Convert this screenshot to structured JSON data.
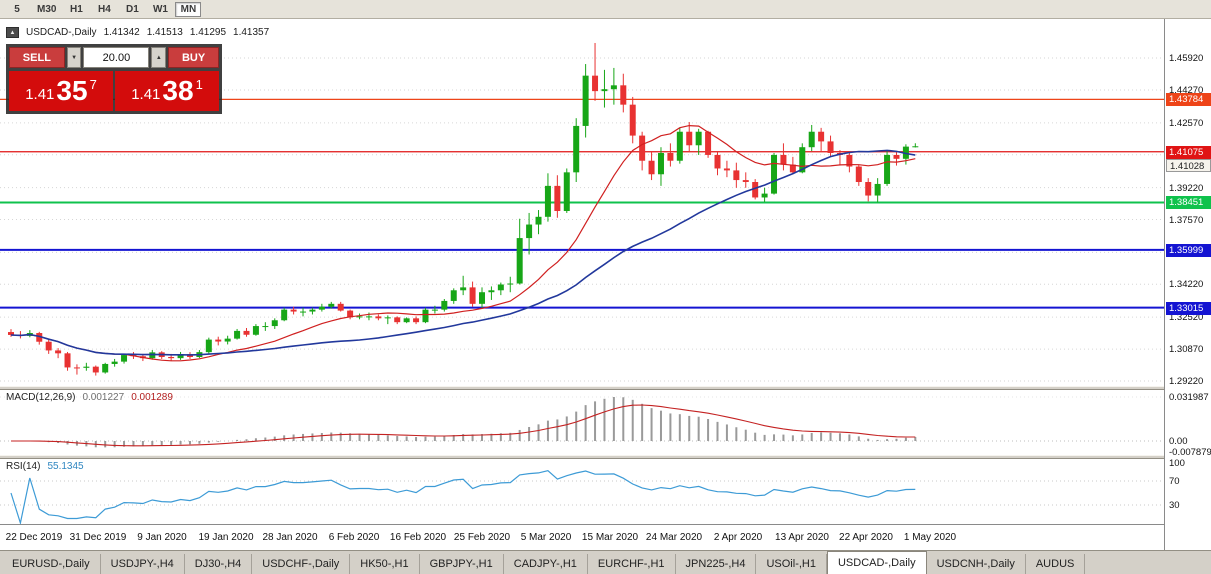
{
  "toolbar": {
    "timeframes": [
      {
        "label": "5",
        "active": false
      },
      {
        "label": "M30",
        "active": false
      },
      {
        "label": "H1",
        "active": false
      },
      {
        "label": "H4",
        "active": false
      },
      {
        "label": "D1",
        "active": false
      },
      {
        "label": "W1",
        "active": false
      },
      {
        "label": "MN",
        "active": true
      }
    ]
  },
  "header": {
    "symbol": "USDCAD-,Daily",
    "open": "1.41342",
    "high": "1.41513",
    "low": "1.41295",
    "close": "1.41357"
  },
  "icons": {
    "one_click_toggle": "▲",
    "spin_down": "▼",
    "spin_up": "▲"
  },
  "trade_panel": {
    "sell_label": "SELL",
    "buy_label": "BUY",
    "volume": "20.00",
    "sell_price": {
      "prefix": "1.41",
      "digits": "35",
      "sup": "7"
    },
    "buy_price": {
      "prefix": "1.41",
      "digits": "38",
      "sup": "1"
    }
  },
  "price_axis": {
    "ticks": [
      "1.45920",
      "1.44270",
      "1.42570",
      "1.40920",
      "1.39220",
      "1.37570",
      "1.35870",
      "1.34220",
      "1.32520",
      "1.30870",
      "1.29220"
    ],
    "tags": [
      {
        "label": "1.43784",
        "bg": "#ee4418",
        "fg": "#ffffff"
      },
      {
        "label": "1.41075",
        "bg": "#e01414",
        "fg": "#ffffff"
      },
      {
        "label": "1.41028",
        "bg": "#f6f3ec",
        "fg": "#222222"
      },
      {
        "label": "1.38451",
        "bg": "#0fc24c",
        "fg": "#ffffff"
      },
      {
        "label": "1.35999",
        "bg": "#1414d2",
        "fg": "#ffffff"
      },
      {
        "label": "1.33015",
        "bg": "#1414d2",
        "fg": "#ffffff"
      }
    ]
  },
  "hlines": [
    {
      "value": 1.43784,
      "color": "#ee4418",
      "width": 1.2
    },
    {
      "value": 1.41075,
      "color": "#e01414",
      "width": 1.2
    },
    {
      "value": 1.38451,
      "color": "#0fc24c",
      "width": 2
    },
    {
      "value": 1.35999,
      "color": "#1414d2",
      "width": 2
    },
    {
      "value": 1.33015,
      "color": "#1414d2",
      "width": 2
    }
  ],
  "macd": {
    "label": "MACD(12,26,9)",
    "value_main": "0.001227",
    "value_signal": "0.001289",
    "axis": [
      "0.031987",
      "0.00",
      "-0.007879"
    ],
    "params": {
      "fast": 12,
      "slow": 26,
      "signal": 9
    }
  },
  "rsi": {
    "label": "RSI(14)",
    "value": "55.1345",
    "axis": [
      "100",
      "70",
      "30"
    ],
    "period": 14,
    "levels": [
      70,
      30
    ]
  },
  "date_axis": [
    "22 Dec 2019",
    "31 Dec 2019",
    "9 Jan 2020",
    "19 Jan 2020",
    "28 Jan 2020",
    "6 Feb 2020",
    "16 Feb 2020",
    "25 Feb 2020",
    "5 Mar 2020",
    "15 Mar 2020",
    "24 Mar 2020",
    "2 Apr 2020",
    "13 Apr 2020",
    "22 Apr 2020",
    "1 May 2020"
  ],
  "tabbar": {
    "tabs": [
      "EURUSD-,Daily",
      "USDJPY-,H4",
      "DJ30-,H4",
      "USDCHF-,Daily",
      "HK50-,H1",
      "GBPJPY-,H1",
      "CADJPY-,H1",
      "EURCHF-,H1",
      "JPN225-,H4",
      "USOil-,H1",
      "USDCAD-,Daily",
      "USDCNH-,Daily",
      "AUDUS"
    ],
    "active": "USDCAD-,Daily"
  },
  "colors": {
    "up": "#17a617",
    "down": "#e83232",
    "ma_fast": "#d02020",
    "ma_slow": "#22389c",
    "macd_hist": "#9a9a9a",
    "macd_signal": "#c42222",
    "rsi_line": "#3d9bd6",
    "grid": "#d6d6d6"
  },
  "chart_data": {
    "type": "candlestick",
    "symbol": "USDCAD",
    "timeframe": "Daily",
    "y_range": [
      1.2896,
      1.4794
    ],
    "ohlc_current": [
      1.41342,
      1.41513,
      1.41295,
      1.41357
    ],
    "indicators": [
      "SMA fast (red)",
      "SMA slow (blue)",
      "MACD(12,26,9)",
      "RSI(14)"
    ],
    "candles": [
      [
        1.3175,
        1.319,
        1.315,
        1.316
      ],
      [
        1.316,
        1.318,
        1.3142,
        1.3155
      ],
      [
        1.3155,
        1.3185,
        1.3148,
        1.317
      ],
      [
        1.317,
        1.3176,
        1.311,
        1.3125
      ],
      [
        1.3125,
        1.3136,
        1.3062,
        1.308
      ],
      [
        1.308,
        1.3092,
        1.304,
        1.3065
      ],
      [
        1.3065,
        1.3072,
        1.2975,
        1.2992
      ],
      [
        1.2992,
        1.3008,
        1.2955,
        1.299
      ],
      [
        1.299,
        1.3016,
        1.2975,
        1.2996
      ],
      [
        1.2996,
        1.3002,
        1.295,
        1.2966
      ],
      [
        1.2966,
        1.3016,
        1.296,
        1.301
      ],
      [
        1.301,
        1.3036,
        1.2996,
        1.3022
      ],
      [
        1.3022,
        1.3062,
        1.3012,
        1.3056
      ],
      [
        1.3056,
        1.3072,
        1.3036,
        1.305
      ],
      [
        1.305,
        1.3062,
        1.3025,
        1.304
      ],
      [
        1.304,
        1.3082,
        1.3032,
        1.307
      ],
      [
        1.307,
        1.3076,
        1.3036,
        1.3046
      ],
      [
        1.3046,
        1.3062,
        1.3026,
        1.304
      ],
      [
        1.304,
        1.3072,
        1.3031,
        1.3061
      ],
      [
        1.3061,
        1.3071,
        1.3036,
        1.3046
      ],
      [
        1.3046,
        1.3082,
        1.3041,
        1.3071
      ],
      [
        1.3071,
        1.3146,
        1.3062,
        1.3136
      ],
      [
        1.3136,
        1.3151,
        1.3106,
        1.3126
      ],
      [
        1.3126,
        1.3156,
        1.3111,
        1.3141
      ],
      [
        1.3141,
        1.3191,
        1.3136,
        1.3181
      ],
      [
        1.3181,
        1.3196,
        1.3151,
        1.3161
      ],
      [
        1.3161,
        1.3216,
        1.3156,
        1.3206
      ],
      [
        1.3206,
        1.3226,
        1.3181,
        1.3206
      ],
      [
        1.3206,
        1.3246,
        1.3191,
        1.3236
      ],
      [
        1.3236,
        1.3301,
        1.3231,
        1.3291
      ],
      [
        1.3291,
        1.3306,
        1.3266,
        1.3281
      ],
      [
        1.3281,
        1.3301,
        1.3256,
        1.3281
      ],
      [
        1.3281,
        1.3301,
        1.3266,
        1.3291
      ],
      [
        1.3291,
        1.3321,
        1.3281,
        1.3306
      ],
      [
        1.3306,
        1.3331,
        1.3296,
        1.3321
      ],
      [
        1.3321,
        1.3331,
        1.3281,
        1.3286
      ],
      [
        1.3286,
        1.3291,
        1.3241,
        1.3251
      ],
      [
        1.3251,
        1.3271,
        1.3241,
        1.3256
      ],
      [
        1.3256,
        1.3276,
        1.3236,
        1.3256
      ],
      [
        1.3256,
        1.3266,
        1.3236,
        1.3246
      ],
      [
        1.3246,
        1.3261,
        1.3216,
        1.3251
      ],
      [
        1.3251,
        1.3256,
        1.3216,
        1.3226
      ],
      [
        1.3226,
        1.3251,
        1.3221,
        1.3246
      ],
      [
        1.3246,
        1.3256,
        1.3216,
        1.3226
      ],
      [
        1.3226,
        1.3301,
        1.3221,
        1.3291
      ],
      [
        1.3291,
        1.3311,
        1.3271,
        1.3291
      ],
      [
        1.3291,
        1.3346,
        1.3281,
        1.3336
      ],
      [
        1.3336,
        1.3401,
        1.3321,
        1.3391
      ],
      [
        1.3391,
        1.3466,
        1.3366,
        1.3406
      ],
      [
        1.3406,
        1.3436,
        1.3306,
        1.3321
      ],
      [
        1.3321,
        1.3406,
        1.3301,
        1.3381
      ],
      [
        1.3381,
        1.3411,
        1.3341,
        1.3391
      ],
      [
        1.3391,
        1.3431,
        1.3366,
        1.3421
      ],
      [
        1.3421,
        1.3461,
        1.3381,
        1.3426
      ],
      [
        1.3426,
        1.3761,
        1.3421,
        1.3661
      ],
      [
        1.3661,
        1.3791,
        1.3576,
        1.3731
      ],
      [
        1.3731,
        1.3806,
        1.3681,
        1.3771
      ],
      [
        1.3771,
        1.3996,
        1.3746,
        1.3931
      ],
      [
        1.3931,
        1.3986,
        1.3766,
        1.3801
      ],
      [
        1.3801,
        1.4021,
        1.3791,
        1.4001
      ],
      [
        1.4001,
        1.4281,
        1.3951,
        1.4241
      ],
      [
        1.4241,
        1.4561,
        1.4181,
        1.4501
      ],
      [
        1.4501,
        1.467,
        1.4371,
        1.4421
      ],
      [
        1.4421,
        1.4531,
        1.4336,
        1.4431
      ],
      [
        1.4431,
        1.4541,
        1.4351,
        1.4451
      ],
      [
        1.4451,
        1.4511,
        1.4311,
        1.4351
      ],
      [
        1.4351,
        1.4391,
        1.4151,
        1.4191
      ],
      [
        1.4191,
        1.4211,
        1.4011,
        1.4061
      ],
      [
        1.4061,
        1.4111,
        1.3961,
        1.3991
      ],
      [
        1.3991,
        1.4131,
        1.3931,
        1.4101
      ],
      [
        1.4101,
        1.4151,
        1.4031,
        1.4061
      ],
      [
        1.4061,
        1.4231,
        1.4046,
        1.4211
      ],
      [
        1.4211,
        1.4261,
        1.4106,
        1.4141
      ],
      [
        1.4141,
        1.4226,
        1.4091,
        1.4211
      ],
      [
        1.4211,
        1.4216,
        1.4076,
        1.4091
      ],
      [
        1.4091,
        1.4106,
        1.3986,
        1.4021
      ],
      [
        1.4021,
        1.4061,
        1.3976,
        1.4011
      ],
      [
        1.4011,
        1.4051,
        1.3921,
        1.3961
      ],
      [
        1.3961,
        1.4001,
        1.3921,
        1.3951
      ],
      [
        1.3951,
        1.3966,
        1.3861,
        1.3871
      ],
      [
        1.3871,
        1.3921,
        1.3848,
        1.3891
      ],
      [
        1.3891,
        1.4101,
        1.3886,
        1.4091
      ],
      [
        1.4091,
        1.4151,
        1.4011,
        1.4041
      ],
      [
        1.4041,
        1.4081,
        1.3991,
        1.4001
      ],
      [
        1.4001,
        1.4151,
        1.3996,
        1.4131
      ],
      [
        1.4131,
        1.4246,
        1.4111,
        1.4211
      ],
      [
        1.4211,
        1.4231,
        1.4106,
        1.4161
      ],
      [
        1.4161,
        1.4191,
        1.4081,
        1.4101
      ],
      [
        1.4101,
        1.4116,
        1.4036,
        1.4091
      ],
      [
        1.4091,
        1.4106,
        1.4001,
        1.4031
      ],
      [
        1.4031,
        1.4041,
        1.3931,
        1.3951
      ],
      [
        1.3951,
        1.3971,
        1.3851,
        1.3881
      ],
      [
        1.3881,
        1.3971,
        1.3846,
        1.3941
      ],
      [
        1.3941,
        1.4111,
        1.3931,
        1.4091
      ],
      [
        1.4091,
        1.4111,
        1.4036,
        1.4071
      ],
      [
        1.4071,
        1.4146,
        1.4041,
        1.4134
      ],
      [
        1.41342,
        1.41513,
        1.41295,
        1.41357
      ]
    ]
  }
}
